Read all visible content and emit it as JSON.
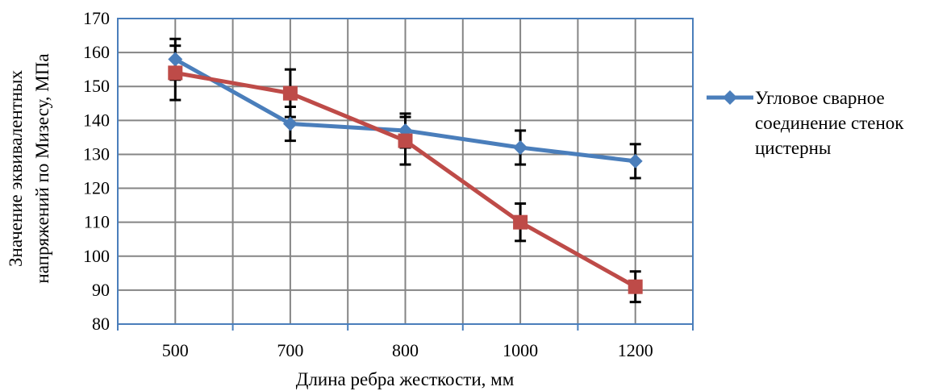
{
  "chart_data": {
    "type": "line",
    "categories": [
      "500",
      "700",
      "800",
      "1000",
      "1200"
    ],
    "series": [
      {
        "name": "Угловое сварное соединение стенок цистерны",
        "color": "#4a7ebb",
        "marker": "diamond",
        "values": [
          158,
          139,
          137,
          132,
          128
        ],
        "error": [
          6,
          5,
          5,
          5,
          5
        ]
      },
      {
        "name": "",
        "color": "#be4b48",
        "marker": "square",
        "values": [
          154,
          148,
          134,
          110,
          91
        ],
        "error": [
          8,
          7,
          7,
          5.5,
          4.5
        ]
      }
    ],
    "xlabel": "Длина ребра жесткости, мм",
    "ylabel": [
      "Значение эквивалентных",
      "напряжений по Мизесу, МПа"
    ],
    "ylim": [
      80,
      170
    ],
    "yticks": [
      80,
      90,
      100,
      110,
      120,
      130,
      140,
      150,
      160,
      170
    ],
    "grid": true,
    "legend": "right"
  }
}
